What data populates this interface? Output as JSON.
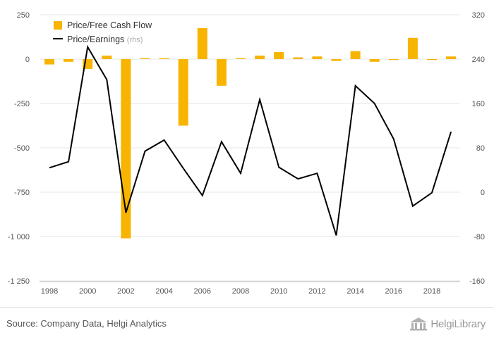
{
  "chart_data": {
    "type": "bar+line",
    "x": [
      1998,
      1999,
      2000,
      2001,
      2002,
      2003,
      2004,
      2005,
      2006,
      2007,
      2008,
      2009,
      2010,
      2011,
      2012,
      2013,
      2014,
      2015,
      2016,
      2017,
      2018,
      2019
    ],
    "x_tick_labels": [
      "1998",
      "2000",
      "2002",
      "2004",
      "2006",
      "2008",
      "2010",
      "2012",
      "2014",
      "2016",
      "2018"
    ],
    "series": [
      {
        "name": "Price/Free Cash Flow",
        "type": "bar",
        "axis": "left",
        "color": "#f7b400",
        "values": [
          -30,
          -15,
          -55,
          20,
          -1010,
          5,
          5,
          -375,
          175,
          -150,
          5,
          20,
          40,
          10,
          15,
          -10,
          45,
          -15,
          -5,
          120,
          -5,
          15
        ]
      },
      {
        "name": "Price/Earnings",
        "axis_note": "(rhs)",
        "type": "line",
        "axis": "right",
        "color": "#000000",
        "values": [
          44,
          55,
          262,
          203,
          -37,
          74,
          94,
          43,
          -6,
          91,
          34,
          167,
          45,
          24,
          34,
          -78,
          192,
          160,
          96,
          -25,
          -1,
          109
        ]
      }
    ],
    "left_axis": {
      "min": -1250,
      "max": 250,
      "ticks": [
        "250",
        "0",
        "-250",
        "-500",
        "-750",
        "-1 000",
        "-1 250"
      ],
      "tick_values": [
        250,
        0,
        -250,
        -500,
        -750,
        -1000,
        -1250
      ]
    },
    "right_axis": {
      "min": -160,
      "max": 320,
      "ticks": [
        "320",
        "240",
        "160",
        "80",
        "0",
        "-80",
        "-160"
      ],
      "tick_values": [
        320,
        240,
        160,
        80,
        0,
        -80,
        -160
      ]
    },
    "grid": true,
    "legend_position": "top-left"
  },
  "legend": {
    "pfcf_label": "Price/Free Cash Flow",
    "pe_label": "Price/Earnings",
    "pe_note": "(rhs)"
  },
  "footer": {
    "source": "Source: Company Data, Helgi Analytics",
    "logo_text": "HelgiLibrary"
  }
}
